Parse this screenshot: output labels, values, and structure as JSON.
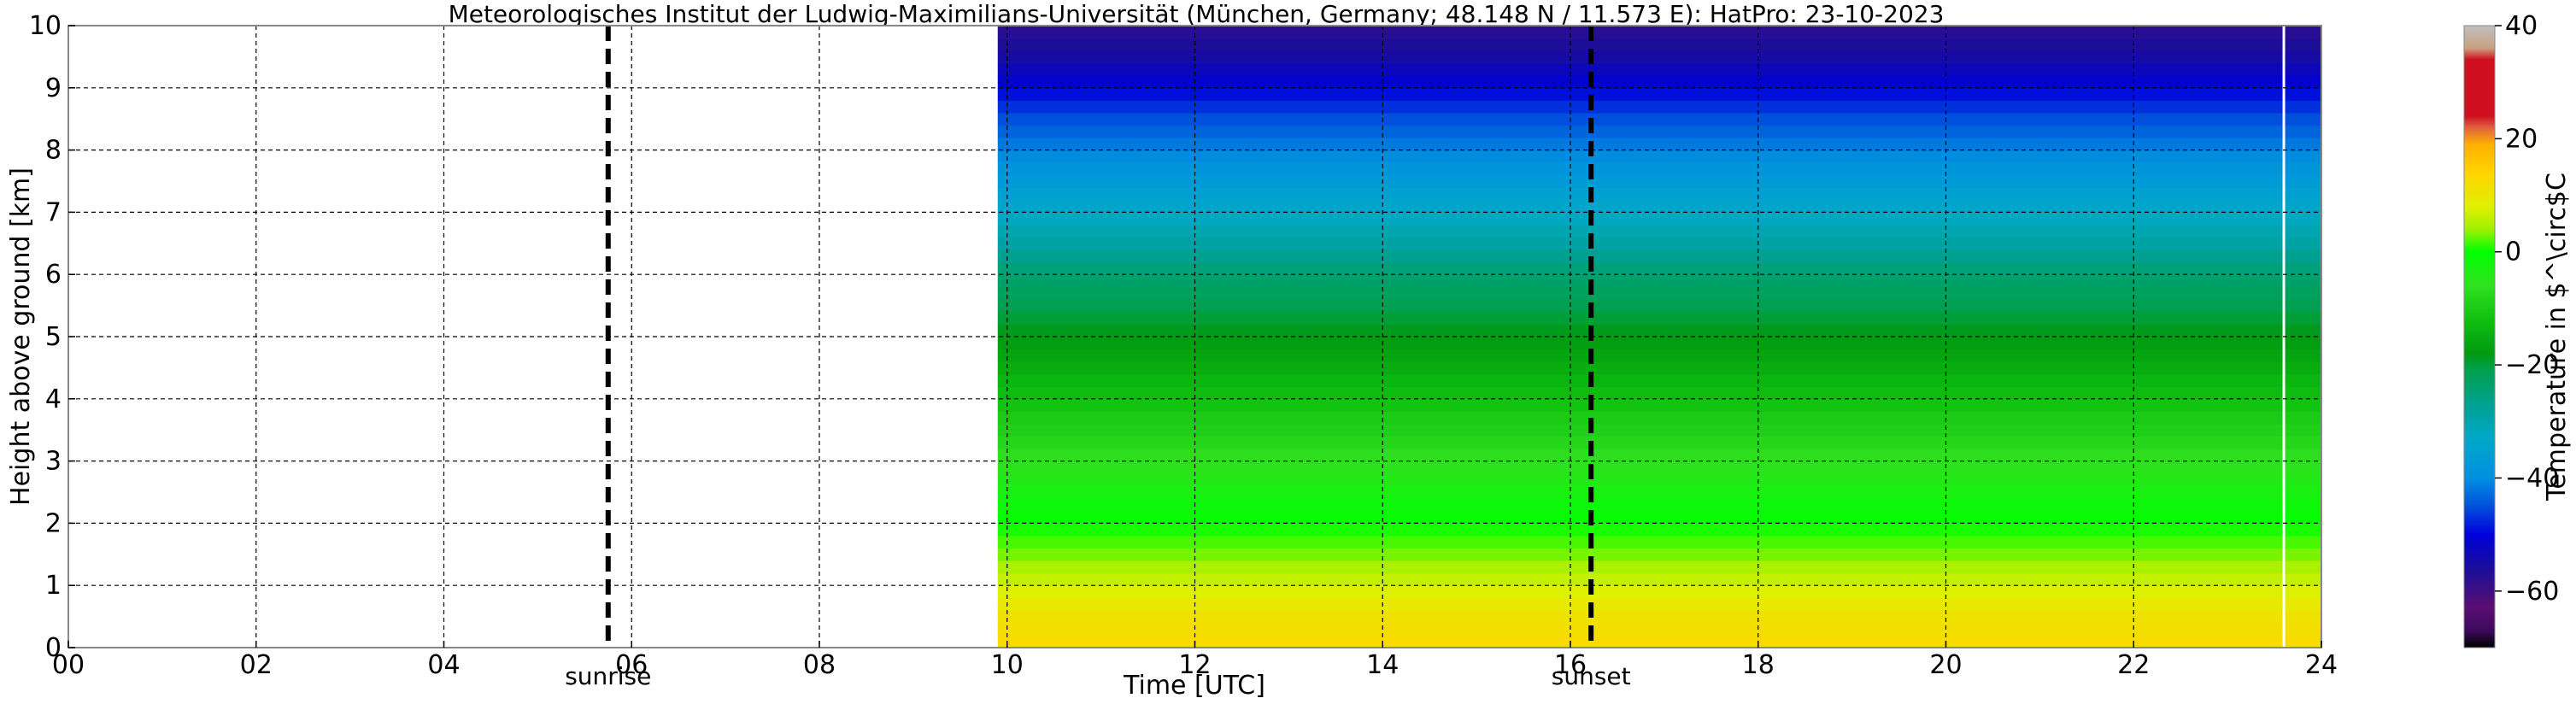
{
  "chart_data": {
    "type": "heatmap",
    "title": "Meteorologisches Institut der Ludwig-Maximilians-Universität (München, Germany; 48.148 N / 11.573 E):    HatPro: 23-10-2023",
    "xlabel": "Time [UTC]",
    "ylabel": "Height above ground [km]",
    "xlim": [
      0,
      24
    ],
    "ylim": [
      0,
      10
    ],
    "x_ticks": [
      "00",
      "02",
      "04",
      "06",
      "08",
      "10",
      "12",
      "14",
      "16",
      "18",
      "20",
      "22",
      "24"
    ],
    "y_ticks": [
      "0",
      "1",
      "2",
      "3",
      "4",
      "5",
      "6",
      "7",
      "8",
      "9",
      "10"
    ],
    "grid": true,
    "data_start_time": 9.9,
    "data_end_time": 24,
    "missing_data_line_time": 23.6,
    "events": [
      {
        "label": "sunrise",
        "time": 5.75
      },
      {
        "label": "sunset",
        "time": 16.22
      }
    ],
    "temperature_profile": {
      "heights_km": [
        0,
        0.5,
        1,
        1.5,
        2,
        2.5,
        3,
        3.5,
        4,
        4.5,
        5,
        5.5,
        6,
        6.5,
        7,
        7.5,
        8,
        8.5,
        9,
        9.5,
        10
      ],
      "temperature_c": [
        13,
        11,
        7,
        3,
        0,
        -3,
        -6,
        -9,
        -12,
        -15,
        -18,
        -21,
        -24,
        -29,
        -33,
        -37,
        -41,
        -45,
        -50,
        -55,
        -58
      ]
    },
    "colorbar": {
      "label": "Temperature in $^\\circ$C",
      "range": [
        -70,
        40
      ],
      "ticks": [
        "−60",
        "−40",
        "−20",
        "0",
        "20",
        "40"
      ],
      "tick_values": [
        -60,
        -40,
        -20,
        0,
        20,
        40
      ],
      "stops": [
        {
          "value": -70,
          "color": "#000000"
        },
        {
          "value": -67,
          "color": "#3d0a5c"
        },
        {
          "value": -63,
          "color": "#5a0e72"
        },
        {
          "value": -56,
          "color": "#1a0e9a"
        },
        {
          "value": -50,
          "color": "#0000dc"
        },
        {
          "value": -45,
          "color": "#0050dc"
        },
        {
          "value": -40,
          "color": "#0090e0"
        },
        {
          "value": -33,
          "color": "#00a8c8"
        },
        {
          "value": -27,
          "color": "#00a090"
        },
        {
          "value": -21,
          "color": "#00a050"
        },
        {
          "value": -18,
          "color": "#009a10"
        },
        {
          "value": -12,
          "color": "#10c010"
        },
        {
          "value": -6,
          "color": "#30e020"
        },
        {
          "value": 0,
          "color": "#00ff00"
        },
        {
          "value": 4,
          "color": "#a0f000"
        },
        {
          "value": 8,
          "color": "#e0f000"
        },
        {
          "value": 14,
          "color": "#ffd400"
        },
        {
          "value": 19,
          "color": "#ffb000"
        },
        {
          "value": 22,
          "color": "#e06040"
        },
        {
          "value": 24,
          "color": "#d01020"
        },
        {
          "value": 34,
          "color": "#d01020"
        },
        {
          "value": 36,
          "color": "#c8a080"
        },
        {
          "value": 40,
          "color": "#c0c0c0"
        }
      ]
    }
  }
}
